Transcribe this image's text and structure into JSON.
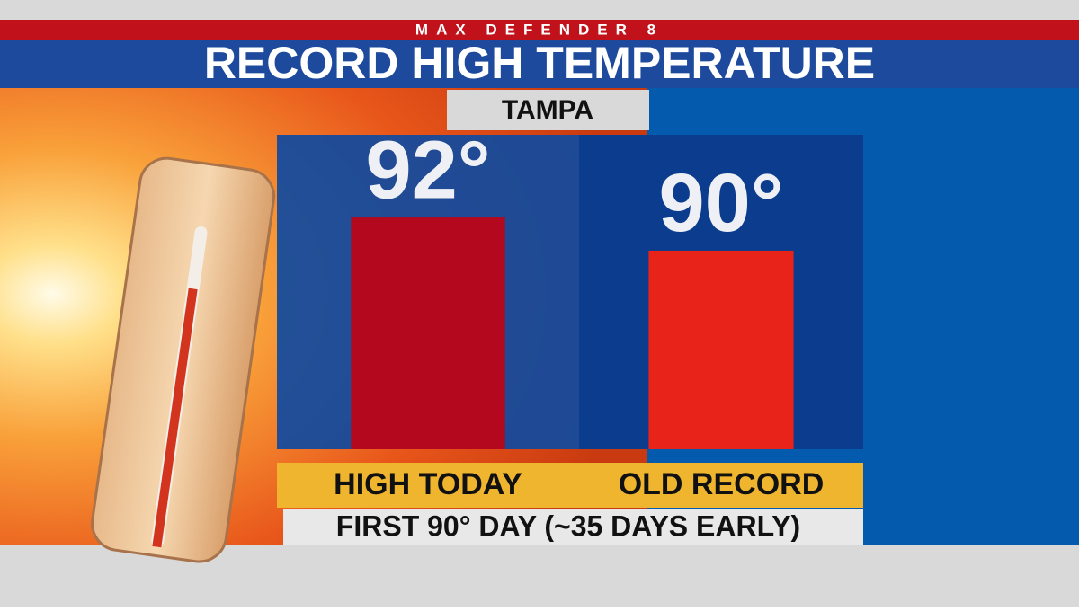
{
  "chart_data": {
    "type": "bar",
    "header": "MAX DEFENDER 8",
    "title": "RECORD HIGH TEMPERATURE",
    "subtitle": "TAMPA",
    "categories": [
      "HIGH TODAY",
      "OLD RECORD"
    ],
    "values": [
      92,
      90
    ],
    "value_labels": [
      "92°",
      "90°"
    ],
    "colors": [
      "#b3081d",
      "#e8231a"
    ],
    "ylim": [
      78,
      97
    ],
    "footer": "FIRST 90° DAY (~35 DAYS EARLY)"
  }
}
